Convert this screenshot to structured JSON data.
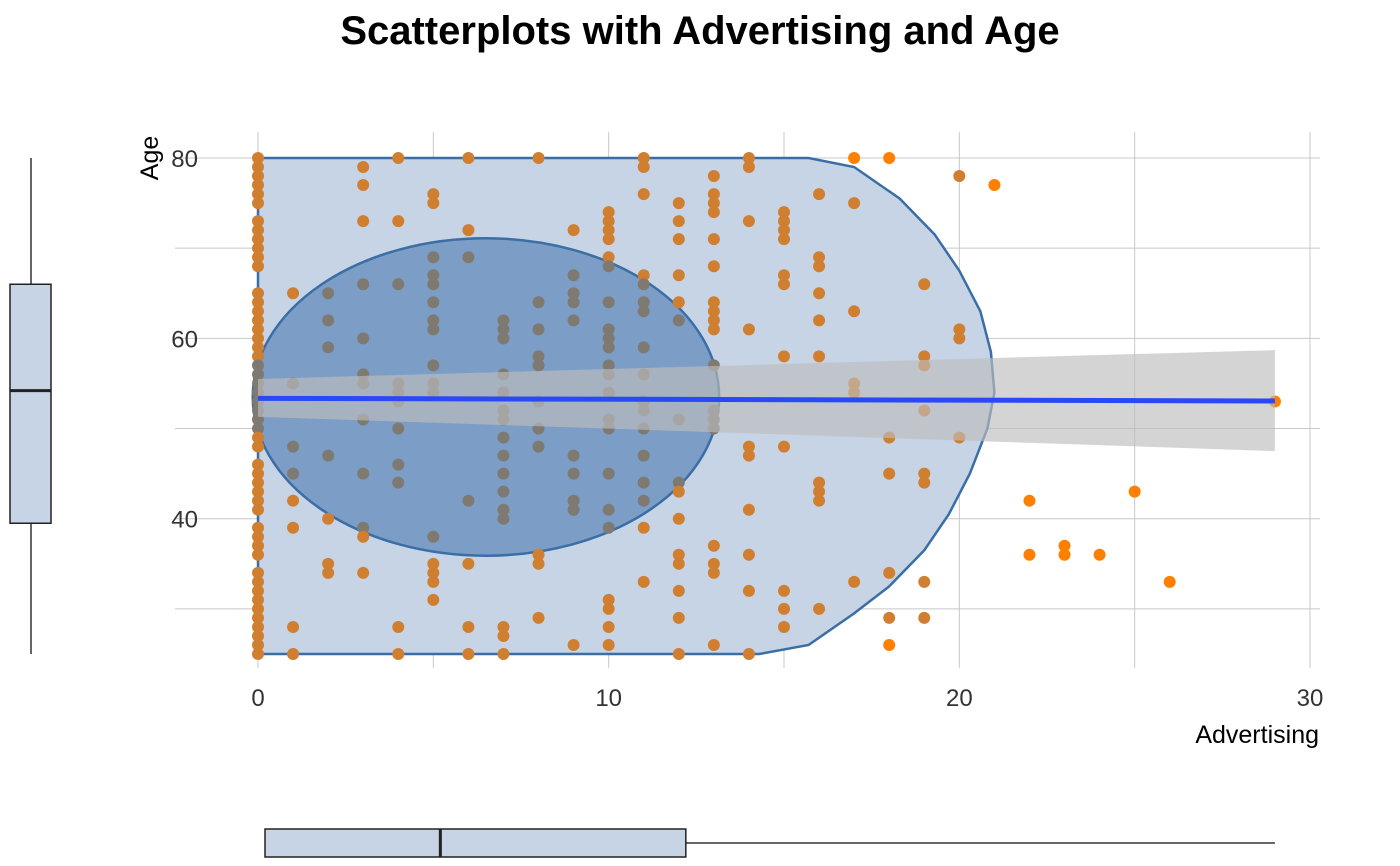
{
  "chart_data": {
    "type": "scatter",
    "title": "Scatterplots with Advertising and Age",
    "xlabel": "Advertising",
    "ylabel": "Age",
    "xlim": [
      0,
      30
    ],
    "ylim": [
      25,
      80
    ],
    "x_ticks": [
      0,
      10,
      20,
      30
    ],
    "y_ticks": [
      40,
      60,
      80
    ],
    "grid": true,
    "point_color": "#FF7F00",
    "fit_line_color": "#2849F5",
    "hull_color": "#C6D4E6",
    "hull_edge_color": "#3A6EA5",
    "ellipse_color": "#6F93BF",
    "ci_band_color": "#BDBDBD",
    "regression": {
      "intercept": 53.35,
      "slope": -0.01,
      "ci_at_x0": [
        51.3,
        55.5
      ],
      "ci_at_xmax": [
        47.5,
        58.7
      ]
    },
    "ellipse": {
      "center": [
        6.5,
        53.5
      ],
      "x_range": [
        0,
        13.3
      ],
      "y_range": [
        36,
        71.2
      ]
    },
    "hull": [
      [
        0,
        25
      ],
      [
        14.3,
        25
      ],
      [
        15.7,
        26
      ],
      [
        17,
        29.5
      ],
      [
        18,
        32.5
      ],
      [
        19,
        36.5
      ],
      [
        19.7,
        40.5
      ],
      [
        20.3,
        45
      ],
      [
        20.8,
        50
      ],
      [
        21,
        54
      ],
      [
        20.9,
        58.5
      ],
      [
        20.6,
        63
      ],
      [
        20,
        67.5
      ],
      [
        19.3,
        71.5
      ],
      [
        18.3,
        75.5
      ],
      [
        17,
        79
      ],
      [
        15.7,
        80
      ],
      [
        0,
        80
      ]
    ],
    "points": [
      [
        0,
        80
      ],
      [
        0,
        79
      ],
      [
        0,
        78
      ],
      [
        0,
        77
      ],
      [
        0,
        76
      ],
      [
        0,
        75
      ],
      [
        0,
        73
      ],
      [
        0,
        72
      ],
      [
        0,
        71
      ],
      [
        0,
        70
      ],
      [
        0,
        69
      ],
      [
        0,
        68
      ],
      [
        0,
        65
      ],
      [
        0,
        64
      ],
      [
        0,
        63
      ],
      [
        0,
        62
      ],
      [
        0,
        61
      ],
      [
        0,
        60
      ],
      [
        0,
        59
      ],
      [
        0,
        58
      ],
      [
        0,
        57
      ],
      [
        0,
        56
      ],
      [
        0,
        55
      ],
      [
        0,
        54
      ],
      [
        0,
        53
      ],
      [
        0,
        52
      ],
      [
        0,
        51
      ],
      [
        0,
        50
      ],
      [
        0,
        49
      ],
      [
        0,
        48
      ],
      [
        0,
        46
      ],
      [
        0,
        45
      ],
      [
        0,
        44
      ],
      [
        0,
        43
      ],
      [
        0,
        42
      ],
      [
        0,
        41
      ],
      [
        0,
        39
      ],
      [
        0,
        38
      ],
      [
        0,
        37
      ],
      [
        0,
        36
      ],
      [
        0,
        34
      ],
      [
        0,
        33
      ],
      [
        0,
        32
      ],
      [
        0,
        31
      ],
      [
        0,
        30
      ],
      [
        0,
        29
      ],
      [
        0,
        28
      ],
      [
        0,
        27
      ],
      [
        0,
        26
      ],
      [
        0,
        25
      ],
      [
        1,
        65
      ],
      [
        1,
        55
      ],
      [
        1,
        48
      ],
      [
        1,
        45
      ],
      [
        1,
        42
      ],
      [
        1,
        39
      ],
      [
        1,
        28
      ],
      [
        1,
        25
      ],
      [
        2,
        65
      ],
      [
        2,
        62
      ],
      [
        2,
        59
      ],
      [
        2,
        47
      ],
      [
        2,
        40
      ],
      [
        2,
        35
      ],
      [
        2,
        34
      ],
      [
        3,
        79
      ],
      [
        3,
        77
      ],
      [
        3,
        73
      ],
      [
        3,
        66
      ],
      [
        3,
        60
      ],
      [
        3,
        56
      ],
      [
        3,
        55
      ],
      [
        3,
        51
      ],
      [
        3,
        45
      ],
      [
        3,
        39
      ],
      [
        3,
        38
      ],
      [
        3,
        34
      ],
      [
        4,
        80
      ],
      [
        4,
        73
      ],
      [
        4,
        66
      ],
      [
        4,
        55
      ],
      [
        4,
        54
      ],
      [
        4,
        53
      ],
      [
        4,
        50
      ],
      [
        4,
        46
      ],
      [
        4,
        44
      ],
      [
        4,
        28
      ],
      [
        4,
        25
      ],
      [
        5,
        76
      ],
      [
        5,
        75
      ],
      [
        5,
        69
      ],
      [
        5,
        67
      ],
      [
        5,
        66
      ],
      [
        5,
        64
      ],
      [
        5,
        62
      ],
      [
        5,
        61
      ],
      [
        5,
        57
      ],
      [
        5,
        55
      ],
      [
        5,
        54
      ],
      [
        5,
        38
      ],
      [
        5,
        35
      ],
      [
        5,
        34
      ],
      [
        5,
        33
      ],
      [
        5,
        31
      ],
      [
        6,
        80
      ],
      [
        6,
        72
      ],
      [
        6,
        69
      ],
      [
        6,
        42
      ],
      [
        6,
        35
      ],
      [
        6,
        28
      ],
      [
        6,
        25
      ],
      [
        7,
        62
      ],
      [
        7,
        61
      ],
      [
        7,
        60
      ],
      [
        7,
        56
      ],
      [
        7,
        54
      ],
      [
        7,
        52
      ],
      [
        7,
        51
      ],
      [
        7,
        49
      ],
      [
        7,
        47
      ],
      [
        7,
        45
      ],
      [
        7,
        43
      ],
      [
        7,
        41
      ],
      [
        7,
        40
      ],
      [
        7,
        28
      ],
      [
        7,
        27
      ],
      [
        7,
        25
      ],
      [
        8,
        80
      ],
      [
        8,
        64
      ],
      [
        8,
        61
      ],
      [
        8,
        58
      ],
      [
        8,
        57
      ],
      [
        8,
        53
      ],
      [
        8,
        50
      ],
      [
        8,
        48
      ],
      [
        8,
        36
      ],
      [
        8,
        35
      ],
      [
        8,
        29
      ],
      [
        9,
        72
      ],
      [
        9,
        67
      ],
      [
        9,
        65
      ],
      [
        9,
        64
      ],
      [
        9,
        62
      ],
      [
        9,
        47
      ],
      [
        9,
        45
      ],
      [
        9,
        42
      ],
      [
        9,
        41
      ],
      [
        9,
        26
      ],
      [
        10,
        74
      ],
      [
        10,
        73
      ],
      [
        10,
        72
      ],
      [
        10,
        71
      ],
      [
        10,
        69
      ],
      [
        10,
        68
      ],
      [
        10,
        64
      ],
      [
        10,
        61
      ],
      [
        10,
        60
      ],
      [
        10,
        59
      ],
      [
        10,
        57
      ],
      [
        10,
        56
      ],
      [
        10,
        54
      ],
      [
        10,
        51
      ],
      [
        10,
        50
      ],
      [
        10,
        45
      ],
      [
        10,
        41
      ],
      [
        10,
        39
      ],
      [
        10,
        31
      ],
      [
        10,
        30
      ],
      [
        10,
        28
      ],
      [
        10,
        26
      ],
      [
        11,
        80
      ],
      [
        11,
        79
      ],
      [
        11,
        76
      ],
      [
        11,
        67
      ],
      [
        11,
        66
      ],
      [
        11,
        64
      ],
      [
        11,
        63
      ],
      [
        11,
        59
      ],
      [
        11,
        56
      ],
      [
        11,
        53
      ],
      [
        11,
        52
      ],
      [
        11,
        50
      ],
      [
        11,
        47
      ],
      [
        11,
        44
      ],
      [
        11,
        42
      ],
      [
        11,
        39
      ],
      [
        11,
        33
      ],
      [
        12,
        75
      ],
      [
        12,
        73
      ],
      [
        12,
        71
      ],
      [
        12,
        67
      ],
      [
        12,
        64
      ],
      [
        12,
        62
      ],
      [
        12,
        51
      ],
      [
        12,
        44
      ],
      [
        12,
        43
      ],
      [
        12,
        40
      ],
      [
        12,
        36
      ],
      [
        12,
        35
      ],
      [
        12,
        32
      ],
      [
        12,
        29
      ],
      [
        12,
        25
      ],
      [
        13,
        78
      ],
      [
        13,
        76
      ],
      [
        13,
        75
      ],
      [
        13,
        74
      ],
      [
        13,
        71
      ],
      [
        13,
        68
      ],
      [
        13,
        64
      ],
      [
        13,
        63
      ],
      [
        13,
        62
      ],
      [
        13,
        61
      ],
      [
        13,
        57
      ],
      [
        13,
        52
      ],
      [
        13,
        51
      ],
      [
        13,
        50
      ],
      [
        13,
        37
      ],
      [
        13,
        35
      ],
      [
        13,
        34
      ],
      [
        13,
        26
      ],
      [
        14,
        80
      ],
      [
        14,
        79
      ],
      [
        14,
        73
      ],
      [
        14,
        61
      ],
      [
        14,
        48
      ],
      [
        14,
        47
      ],
      [
        14,
        41
      ],
      [
        14,
        36
      ],
      [
        14,
        32
      ],
      [
        14,
        25
      ],
      [
        15,
        74
      ],
      [
        15,
        73
      ],
      [
        15,
        72
      ],
      [
        15,
        71
      ],
      [
        15,
        67
      ],
      [
        15,
        66
      ],
      [
        15,
        58
      ],
      [
        15,
        48
      ],
      [
        15,
        32
      ],
      [
        15,
        30
      ],
      [
        15,
        28
      ],
      [
        16,
        76
      ],
      [
        16,
        69
      ],
      [
        16,
        68
      ],
      [
        16,
        65
      ],
      [
        16,
        62
      ],
      [
        16,
        58
      ],
      [
        16,
        44
      ],
      [
        16,
        43
      ],
      [
        16,
        42
      ],
      [
        16,
        30
      ],
      [
        17,
        80
      ],
      [
        17,
        75
      ],
      [
        17,
        63
      ],
      [
        17,
        55
      ],
      [
        17,
        54
      ],
      [
        17,
        33
      ],
      [
        18,
        80
      ],
      [
        18,
        49
      ],
      [
        18,
        45
      ],
      [
        18,
        34
      ],
      [
        18,
        29
      ],
      [
        18,
        26
      ],
      [
        19,
        66
      ],
      [
        19,
        58
      ],
      [
        19,
        57
      ],
      [
        19,
        52
      ],
      [
        19,
        45
      ],
      [
        19,
        44
      ],
      [
        19,
        33
      ],
      [
        19,
        29
      ],
      [
        20,
        78
      ],
      [
        20,
        61
      ],
      [
        20,
        60
      ],
      [
        20,
        49
      ],
      [
        21,
        77
      ],
      [
        22,
        42
      ],
      [
        22,
        36
      ],
      [
        23,
        37
      ],
      [
        23,
        36
      ],
      [
        24,
        36
      ],
      [
        25,
        43
      ],
      [
        26,
        33
      ],
      [
        29,
        53
      ]
    ],
    "marginal_boxplot_x": {
      "min": 0.2,
      "q1": 0.2,
      "median": 5.2,
      "q3": 12.2,
      "max": 29
    },
    "marginal_boxplot_y": {
      "min": 25,
      "q1": 39.5,
      "median": 54.2,
      "q3": 66,
      "max": 80
    }
  }
}
